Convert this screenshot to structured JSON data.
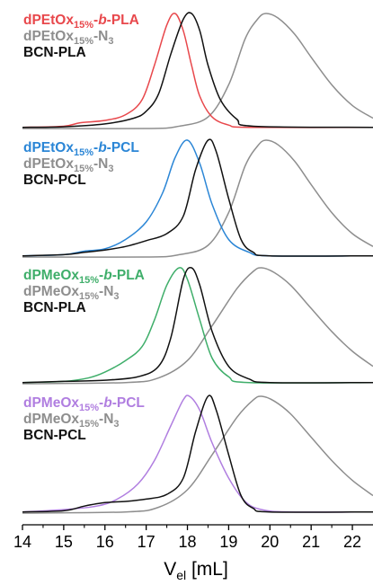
{
  "chart_data": {
    "type": "line",
    "xlabel_main": "V",
    "xlabel_sub": "el",
    "xlabel_unit": " [mL]",
    "xlim": [
      14,
      22.5
    ],
    "xticks": [
      14,
      15,
      16,
      17,
      18,
      19,
      20,
      21,
      22
    ],
    "colors": {
      "red": "#e8484c",
      "blue": "#2b86d6",
      "green": "#3fae6a",
      "purple": "#b07ee0",
      "gray": "#8e8e8e",
      "black": "#111111"
    },
    "panels": [
      {
        "legend": [
          {
            "main": "dPEtOx",
            "sub": "15%",
            "mid": "-",
            "italic": "b",
            "post": "-PLA",
            "color": "red"
          },
          {
            "main": "dPEtOx",
            "sub": "15%",
            "post": "-N",
            "sub2": "3",
            "color": "gray"
          },
          {
            "main": "BCN-PLA",
            "color": "black"
          }
        ],
        "series": [
          {
            "name": "dPEtOx15%-b-PLA",
            "color": "red",
            "points": [
              [
                14,
                0.01
              ],
              [
                15,
                0.02
              ],
              [
                15.4,
                0.05
              ],
              [
                16,
                0.07
              ],
              [
                16.5,
                0.12
              ],
              [
                16.9,
                0.25
              ],
              [
                17.2,
                0.55
              ],
              [
                17.5,
                0.9
              ],
              [
                17.7,
                1.0
              ],
              [
                17.9,
                0.85
              ],
              [
                18.1,
                0.55
              ],
              [
                18.3,
                0.28
              ],
              [
                18.6,
                0.1
              ],
              [
                19,
                0.03
              ],
              [
                19.5,
                0.01
              ],
              [
                22.5,
                0.01
              ]
            ]
          },
          {
            "name": "dPEtOx15%-N3",
            "color": "gray",
            "points": [
              [
                14,
                0.0
              ],
              [
                17,
                0.0
              ],
              [
                17.8,
                0.02
              ],
              [
                18.5,
                0.1
              ],
              [
                19,
                0.38
              ],
              [
                19.4,
                0.78
              ],
              [
                19.7,
                0.95
              ],
              [
                19.9,
                1.0
              ],
              [
                20.2,
                0.96
              ],
              [
                20.6,
                0.82
              ],
              [
                21,
                0.62
              ],
              [
                21.5,
                0.38
              ],
              [
                22,
                0.2
              ],
              [
                22.5,
                0.09
              ]
            ]
          },
          {
            "name": "BCN-PLA",
            "color": "black",
            "points": [
              [
                14,
                0.01
              ],
              [
                15,
                0.015
              ],
              [
                16,
                0.04
              ],
              [
                16.7,
                0.09
              ],
              [
                17,
                0.15
              ],
              [
                17.3,
                0.3
              ],
              [
                17.6,
                0.65
              ],
              [
                17.9,
                0.95
              ],
              [
                18.1,
                1.0
              ],
              [
                18.3,
                0.85
              ],
              [
                18.5,
                0.55
              ],
              [
                18.8,
                0.25
              ],
              [
                19.2,
                0.08
              ],
              [
                19.6,
                0.02
              ],
              [
                22.5,
                0.01
              ]
            ]
          }
        ]
      },
      {
        "legend": [
          {
            "main": "dPEtOx",
            "sub": "15%",
            "mid": "-",
            "italic": "b",
            "post": "-PCL",
            "color": "blue"
          },
          {
            "main": "dPEtOx",
            "sub": "15%",
            "post": "-N",
            "sub2": "3",
            "color": "gray"
          },
          {
            "main": "BCN-PCL",
            "color": "black"
          }
        ],
        "series": [
          {
            "name": "dPEtOx15%-b-PCL",
            "color": "blue",
            "points": [
              [
                14,
                0.01
              ],
              [
                15,
                0.02
              ],
              [
                15.5,
                0.05
              ],
              [
                16,
                0.07
              ],
              [
                16.5,
                0.15
              ],
              [
                17,
                0.3
              ],
              [
                17.4,
                0.55
              ],
              [
                17.7,
                0.85
              ],
              [
                18,
                1.0
              ],
              [
                18.3,
                0.8
              ],
              [
                18.6,
                0.45
              ],
              [
                19,
                0.15
              ],
              [
                19.5,
                0.04
              ],
              [
                20,
                0.01
              ],
              [
                22.5,
                0.01
              ]
            ]
          },
          {
            "name": "dPEtOx15%-N3",
            "color": "gray",
            "points": [
              [
                14,
                0.0
              ],
              [
                17,
                0.0
              ],
              [
                17.8,
                0.02
              ],
              [
                18.5,
                0.1
              ],
              [
                19,
                0.38
              ],
              [
                19.4,
                0.78
              ],
              [
                19.7,
                0.95
              ],
              [
                19.9,
                1.0
              ],
              [
                20.2,
                0.96
              ],
              [
                20.6,
                0.82
              ],
              [
                21,
                0.62
              ],
              [
                21.5,
                0.38
              ],
              [
                22,
                0.2
              ],
              [
                22.5,
                0.09
              ]
            ]
          },
          {
            "name": "BCN-PCL",
            "color": "black",
            "points": [
              [
                14,
                0.01
              ],
              [
                15,
                0.02
              ],
              [
                15.5,
                0.04
              ],
              [
                16,
                0.06
              ],
              [
                16.5,
                0.09
              ],
              [
                17,
                0.14
              ],
              [
                17.5,
                0.2
              ],
              [
                17.9,
                0.35
              ],
              [
                18.2,
                0.75
              ],
              [
                18.5,
                1.0
              ],
              [
                18.7,
                0.9
              ],
              [
                19,
                0.5
              ],
              [
                19.3,
                0.15
              ],
              [
                19.6,
                0.04
              ],
              [
                20,
                0.01
              ],
              [
                22.5,
                0.01
              ]
            ]
          }
        ]
      },
      {
        "legend": [
          {
            "main": "dPMeOx",
            "sub": "15%",
            "mid": "-",
            "italic": "b",
            "post": "-PLA",
            "color": "green"
          },
          {
            "main": "dPMeOx",
            "sub": "15%",
            "post": "-N",
            "sub2": "3",
            "color": "gray"
          },
          {
            "main": "BCN-PLA",
            "color": "black"
          }
        ],
        "series": [
          {
            "name": "dPMeOx15%-b-PLA",
            "color": "green",
            "points": [
              [
                14,
                0.01
              ],
              [
                15,
                0.02
              ],
              [
                15.6,
                0.05
              ],
              [
                16,
                0.1
              ],
              [
                16.5,
                0.2
              ],
              [
                16.9,
                0.32
              ],
              [
                17.2,
                0.55
              ],
              [
                17.5,
                0.85
              ],
              [
                17.8,
                1.0
              ],
              [
                18,
                0.9
              ],
              [
                18.3,
                0.55
              ],
              [
                18.6,
                0.22
              ],
              [
                19,
                0.06
              ],
              [
                19.5,
                0.01
              ],
              [
                22.5,
                0.01
              ]
            ]
          },
          {
            "name": "dPMeOx15%-N3",
            "color": "gray",
            "points": [
              [
                14,
                0.0
              ],
              [
                16.5,
                0.01
              ],
              [
                17.3,
                0.05
              ],
              [
                18,
                0.2
              ],
              [
                18.6,
                0.5
              ],
              [
                19.2,
                0.82
              ],
              [
                19.6,
                0.97
              ],
              [
                19.8,
                1.0
              ],
              [
                20.1,
                0.96
              ],
              [
                20.5,
                0.85
              ],
              [
                21,
                0.65
              ],
              [
                21.5,
                0.45
              ],
              [
                22,
                0.28
              ],
              [
                22.5,
                0.15
              ]
            ]
          },
          {
            "name": "BCN-PLA",
            "color": "black",
            "points": [
              [
                14,
                0.01
              ],
              [
                15,
                0.02
              ],
              [
                16,
                0.03
              ],
              [
                16.8,
                0.06
              ],
              [
                17.3,
                0.15
              ],
              [
                17.6,
                0.4
              ],
              [
                17.9,
                0.9
              ],
              [
                18.1,
                1.0
              ],
              [
                18.3,
                0.85
              ],
              [
                18.6,
                0.45
              ],
              [
                19,
                0.15
              ],
              [
                19.5,
                0.04
              ],
              [
                20,
                0.01
              ],
              [
                22.5,
                0.01
              ]
            ]
          }
        ]
      },
      {
        "legend": [
          {
            "main": "dPMeOx",
            "sub": "15%",
            "mid": "-",
            "italic": "b",
            "post": "-PCL",
            "color": "purple"
          },
          {
            "main": "dPMeOx",
            "sub": "15%",
            "post": "-N",
            "sub2": "3",
            "color": "gray"
          },
          {
            "main": "BCN-PCL",
            "color": "black"
          }
        ],
        "series": [
          {
            "name": "dPMeOx15%-b-PCL",
            "color": "purple",
            "points": [
              [
                14,
                0.01
              ],
              [
                15,
                0.03
              ],
              [
                15.8,
                0.06
              ],
              [
                16.3,
                0.12
              ],
              [
                16.8,
                0.25
              ],
              [
                17.2,
                0.45
              ],
              [
                17.6,
                0.75
              ],
              [
                17.9,
                0.97
              ],
              [
                18.05,
                1.0
              ],
              [
                18.3,
                0.88
              ],
              [
                18.6,
                0.6
              ],
              [
                19,
                0.3
              ],
              [
                19.4,
                0.1
              ],
              [
                19.8,
                0.03
              ],
              [
                20.5,
                0.01
              ],
              [
                22.5,
                0.01
              ]
            ]
          },
          {
            "name": "dPMeOx15%-N3",
            "color": "gray",
            "points": [
              [
                14,
                0.0
              ],
              [
                16.5,
                0.01
              ],
              [
                17.3,
                0.05
              ],
              [
                18,
                0.2
              ],
              [
                18.6,
                0.5
              ],
              [
                19.2,
                0.82
              ],
              [
                19.6,
                0.97
              ],
              [
                19.8,
                1.0
              ],
              [
                20.1,
                0.96
              ],
              [
                20.5,
                0.85
              ],
              [
                21,
                0.65
              ],
              [
                21.5,
                0.45
              ],
              [
                22,
                0.28
              ],
              [
                22.5,
                0.15
              ]
            ]
          },
          {
            "name": "BCN-PCL",
            "color": "black",
            "points": [
              [
                14,
                0.01
              ],
              [
                15,
                0.02
              ],
              [
                15.5,
                0.06
              ],
              [
                16,
                0.09
              ],
              [
                16.5,
                0.1
              ],
              [
                17,
                0.12
              ],
              [
                17.5,
                0.16
              ],
              [
                17.9,
                0.3
              ],
              [
                18.2,
                0.7
              ],
              [
                18.5,
                1.0
              ],
              [
                18.7,
                0.88
              ],
              [
                19,
                0.5
              ],
              [
                19.3,
                0.15
              ],
              [
                19.6,
                0.04
              ],
              [
                20,
                0.01
              ],
              [
                22.5,
                0.01
              ]
            ]
          }
        ]
      }
    ]
  }
}
